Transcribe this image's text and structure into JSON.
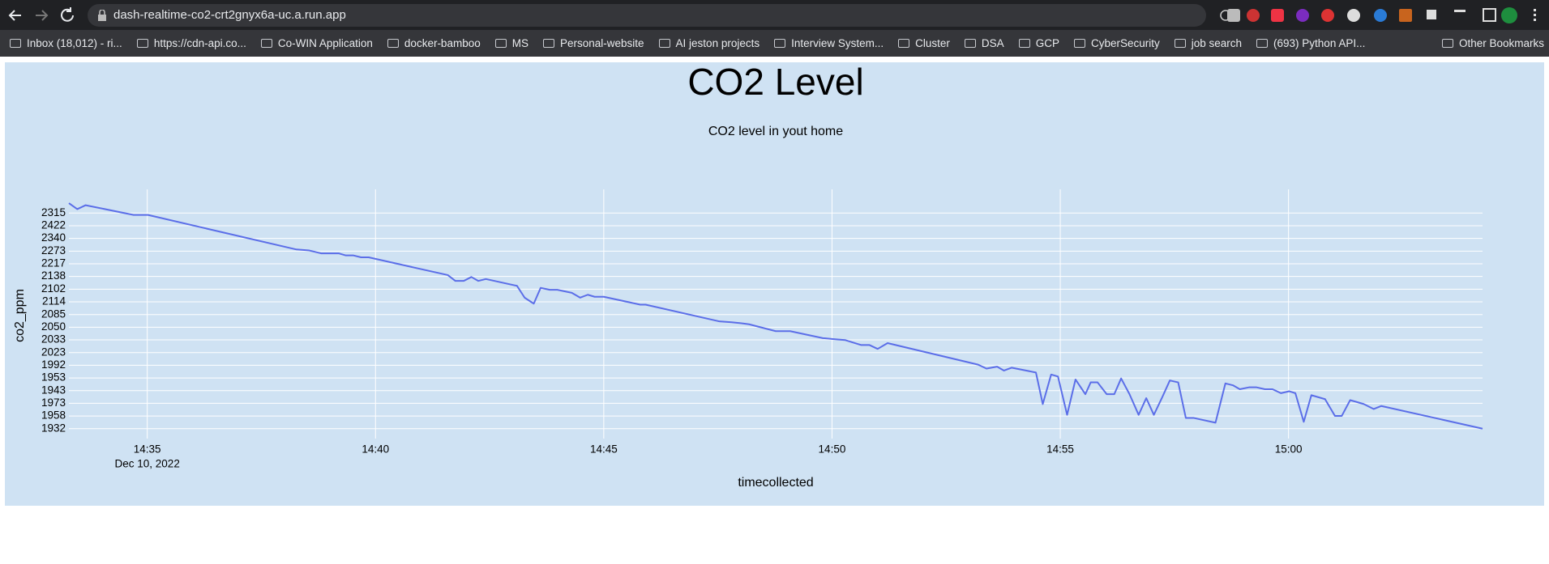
{
  "browser": {
    "url": "dash-realtime-co2-crt2gnyx6a-uc.a.run.app",
    "bookmarks": [
      "Inbox (18,012) - ri...",
      "https://cdn-api.co...",
      "Co-WIN Application",
      "docker-bamboo",
      "MS",
      "Personal-website",
      "AI jeston projects",
      "Interview System...",
      "Cluster",
      "DSA",
      "GCP",
      "CyberSecurity",
      "job search",
      "(693) Python API..."
    ],
    "other_bookmarks": "Other Bookmarks"
  },
  "chart_data": {
    "type": "line",
    "title": "CO2 Level",
    "subtitle": "CO2 level in yout home",
    "x_label": "timecollected",
    "y_label": "co2_ppm",
    "x_date_label": "Dec 10, 2022",
    "color": "#5b6ee8",
    "grid": true,
    "xlim": [
      "2022-12-10T14:33:17",
      "2022-12-10T15:04:15"
    ],
    "xticks": [
      {
        "value": "2022-12-10T14:35:00",
        "label": "14:35"
      },
      {
        "value": "2022-12-10T14:40:00",
        "label": "14:40"
      },
      {
        "value": "2022-12-10T14:45:00",
        "label": "14:45"
      },
      {
        "value": "2022-12-10T14:50:00",
        "label": "14:50"
      },
      {
        "value": "2022-12-10T14:55:00",
        "label": "14:55"
      },
      {
        "value": "2022-12-10T15:00:00",
        "label": "15:00"
      }
    ],
    "ylim": [
      -0.78,
      18.87
    ],
    "yticks": [
      {
        "value": 0,
        "label": "1932"
      },
      {
        "value": 1,
        "label": "1958"
      },
      {
        "value": 2,
        "label": "1973"
      },
      {
        "value": 3,
        "label": "1943"
      },
      {
        "value": 4,
        "label": "1953"
      },
      {
        "value": 5,
        "label": "1992"
      },
      {
        "value": 6,
        "label": "2023"
      },
      {
        "value": 7,
        "label": "2033"
      },
      {
        "value": 8,
        "label": "2050"
      },
      {
        "value": 9,
        "label": "2085"
      },
      {
        "value": 10,
        "label": "2114"
      },
      {
        "value": 11,
        "label": "2102"
      },
      {
        "value": 12,
        "label": "2138"
      },
      {
        "value": 13,
        "label": "2217"
      },
      {
        "value": 14,
        "label": "2273"
      },
      {
        "value": 15,
        "label": "2340"
      },
      {
        "value": 16,
        "label": "2422"
      },
      {
        "value": 17,
        "label": "2315"
      }
    ],
    "x": [
      "2022-12-10T14:33:17",
      "2022-12-10T14:33:28",
      "2022-12-10T14:33:39",
      "2022-12-10T14:34:42",
      "2022-12-10T14:35:01",
      "2022-12-10T14:38:16",
      "2022-12-10T14:38:33",
      "2022-12-10T14:38:49",
      "2022-12-10T14:39:12",
      "2022-12-10T14:39:21",
      "2022-12-10T14:39:31",
      "2022-12-10T14:39:41",
      "2022-12-10T14:39:51",
      "2022-12-10T14:41:35",
      "2022-12-10T14:41:45",
      "2022-12-10T14:41:56",
      "2022-12-10T14:42:06",
      "2022-12-10T14:42:15",
      "2022-12-10T14:42:25",
      "2022-12-10T14:43:06",
      "2022-12-10T14:43:16",
      "2022-12-10T14:43:28",
      "2022-12-10T14:43:37",
      "2022-12-10T14:43:49",
      "2022-12-10T14:43:59",
      "2022-12-10T14:44:18",
      "2022-12-10T14:44:29",
      "2022-12-10T14:44:39",
      "2022-12-10T14:44:48",
      "2022-12-10T14:45:00",
      "2022-12-10T14:45:48",
      "2022-12-10T14:45:55",
      "2022-12-10T14:47:32",
      "2022-12-10T14:47:48",
      "2022-12-10T14:48:01",
      "2022-12-10T14:48:11",
      "2022-12-10T14:48:46",
      "2022-12-10T14:49:05",
      "2022-12-10T14:49:48",
      "2022-12-10T14:50:01",
      "2022-12-10T14:50:17",
      "2022-12-10T14:50:38",
      "2022-12-10T14:50:49",
      "2022-12-10T14:51:00",
      "2022-12-10T14:51:13",
      "2022-12-10T14:53:12",
      "2022-12-10T14:53:23",
      "2022-12-10T14:53:37",
      "2022-12-10T14:53:46",
      "2022-12-10T14:53:56",
      "2022-12-10T14:54:28",
      "2022-12-10T14:54:37",
      "2022-12-10T14:54:48",
      "2022-12-10T14:54:57",
      "2022-12-10T14:55:09",
      "2022-12-10T14:55:20",
      "2022-12-10T14:55:33",
      "2022-12-10T14:55:40",
      "2022-12-10T14:55:49",
      "2022-12-10T14:56:01",
      "2022-12-10T14:56:11",
      "2022-12-10T14:56:20",
      "2022-12-10T14:56:31",
      "2022-12-10T14:56:43",
      "2022-12-10T14:56:53",
      "2022-12-10T14:57:03",
      "2022-12-10T14:57:14",
      "2022-12-10T14:57:24",
      "2022-12-10T14:57:35",
      "2022-12-10T14:57:45",
      "2022-12-10T14:57:55",
      "2022-12-10T14:58:24",
      "2022-12-10T14:58:37",
      "2022-12-10T14:58:47",
      "2022-12-10T14:58:56",
      "2022-12-10T14:59:08",
      "2022-12-10T14:59:18",
      "2022-12-10T14:59:29",
      "2022-12-10T14:59:39",
      "2022-12-10T14:59:50",
      "2022-12-10T15:00:01",
      "2022-12-10T15:00:09",
      "2022-12-10T15:00:20",
      "2022-12-10T15:00:30",
      "2022-12-10T15:00:48",
      "2022-12-10T15:01:01",
      "2022-12-10T15:01:10",
      "2022-12-10T15:01:21",
      "2022-12-10T15:01:30",
      "2022-12-10T15:01:39",
      "2022-12-10T15:01:52",
      "2022-12-10T15:02:02",
      "2022-12-10T15:04:15"
    ],
    "values": [
      17.78,
      17.31,
      17.62,
      16.85,
      16.85,
      14.13,
      14.05,
      13.82,
      13.82,
      13.66,
      13.66,
      13.51,
      13.51,
      12.11,
      11.65,
      11.65,
      11.96,
      11.65,
      11.8,
      11.26,
      10.33,
      9.86,
      11.1,
      10.95,
      10.95,
      10.71,
      10.33,
      10.56,
      10.4,
      10.4,
      9.78,
      9.78,
      8.46,
      8.39,
      8.31,
      8.23,
      7.69,
      7.69,
      7.14,
      7.07,
      6.99,
      6.6,
      6.6,
      6.29,
      6.75,
      5.05,
      4.74,
      4.89,
      4.58,
      4.81,
      4.43,
      1.94,
      4.27,
      4.11,
      1.09,
      3.88,
      2.72,
      3.65,
      3.65,
      2.72,
      2.72,
      3.96,
      2.72,
      1.09,
      2.41,
      1.09,
      2.48,
      3.8,
      3.65,
      0.85,
      0.85,
      0.47,
      3.57,
      3.42,
      3.11,
      3.26,
      3.26,
      3.11,
      3.11,
      2.8,
      2.95,
      2.8,
      0.54,
      2.64,
      2.33,
      1.01,
      1.01,
      2.25,
      2.1,
      1.94,
      1.55,
      1.79,
      0
    ]
  }
}
